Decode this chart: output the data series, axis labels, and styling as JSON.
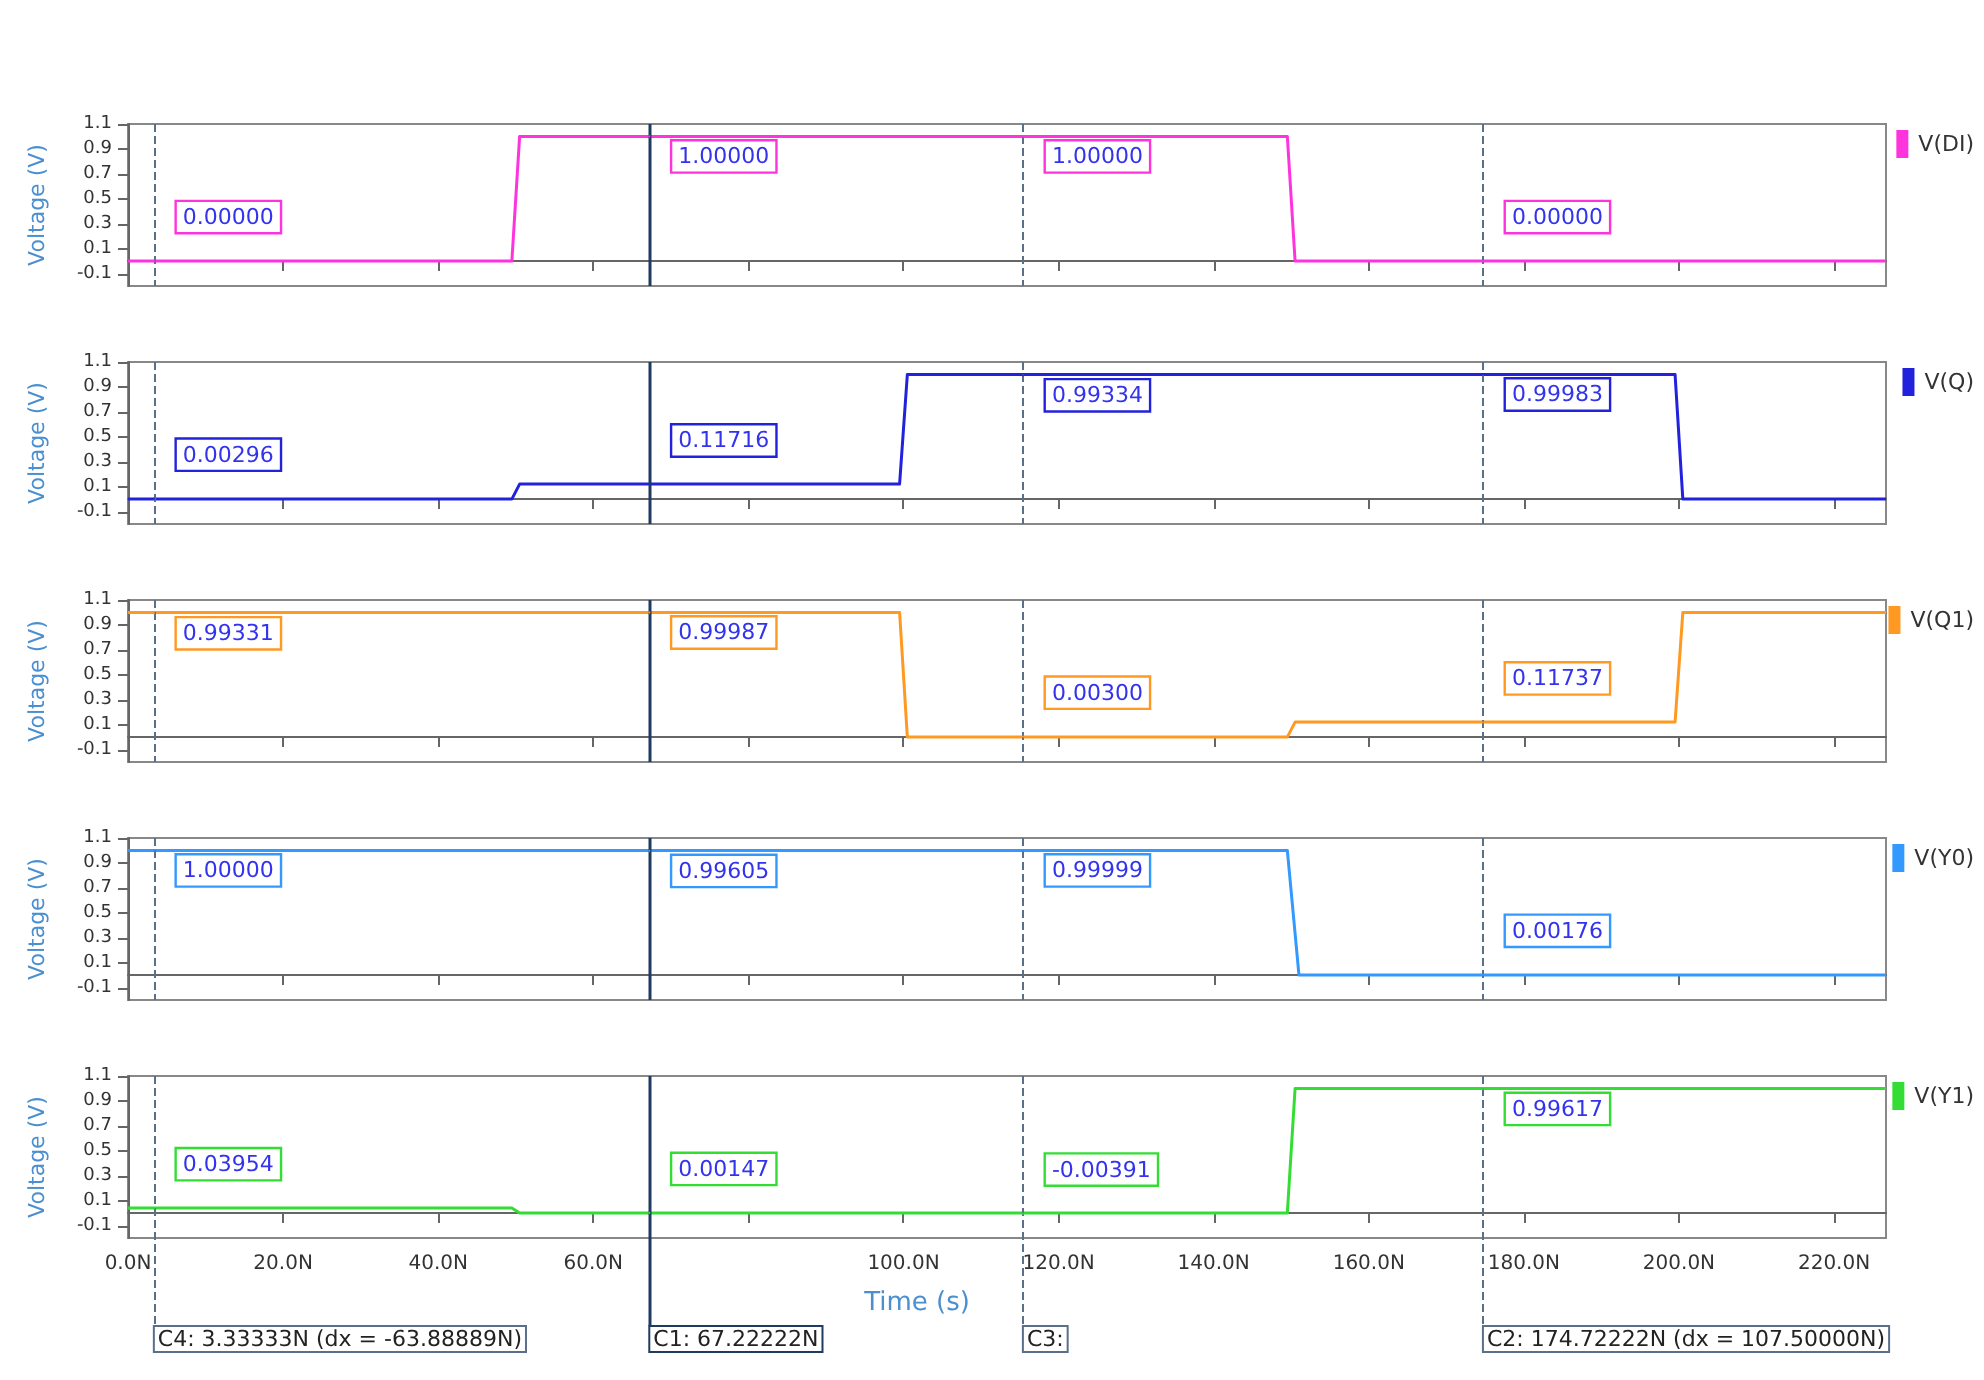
{
  "chart_data": [
    {
      "type": "line",
      "ylabel": "Voltage (V)",
      "legend": "right",
      "marker": "none",
      "tick_labels": "y",
      "xlim": [
        0,
        226.7
      ],
      "xticks": [
        0,
        20,
        40,
        60,
        80,
        100,
        120,
        140,
        160,
        180,
        200,
        220
      ],
      "ylim": [
        -0.2,
        1.1
      ],
      "yticks": [
        -0.1,
        0.1,
        0.3,
        0.5,
        0.7,
        0.9,
        1.1
      ],
      "series": [
        {
          "name": "V(DI)",
          "color": "#ff33dd",
          "x": [
            0,
            49.5,
            50.5,
            149.5,
            150.5,
            226.7
          ],
          "values": [
            0,
            0,
            1,
            1,
            0,
            0
          ]
        }
      ],
      "ref_lines": [
        {
          "axis": "x",
          "value": 3.33333,
          "color": "#5a6f8a",
          "line_style": "dashed"
        },
        {
          "axis": "x",
          "value": 67.22222,
          "color": "#1f3b5f",
          "line_style": "solid"
        },
        {
          "axis": "x",
          "value": 115.4,
          "color": "#5a6f8a",
          "line_style": "dashed"
        },
        {
          "axis": "x",
          "value": 174.72222,
          "color": "#5a6f8a",
          "line_style": "dashed"
        }
      ],
      "annotations": [
        {
          "text": "0.00000",
          "x": 3.33333,
          "y": 0
        },
        {
          "text": "1.00000",
          "x": 67.22222,
          "y": 1
        },
        {
          "text": "1.00000",
          "x": 115.4,
          "y": 1
        },
        {
          "text": "0.00000",
          "x": 174.72222,
          "y": 0
        }
      ]
    },
    {
      "type": "line",
      "ylabel": "Voltage (V)",
      "legend": "right",
      "marker": "none",
      "tick_labels": "y",
      "xlim": [
        0,
        226.7
      ],
      "xticks": [
        0,
        20,
        40,
        60,
        80,
        100,
        120,
        140,
        160,
        180,
        200,
        220
      ],
      "ylim": [
        -0.2,
        1.1
      ],
      "yticks": [
        -0.1,
        0.1,
        0.3,
        0.5,
        0.7,
        0.9,
        1.1
      ],
      "series": [
        {
          "name": "V(Q)",
          "color": "#2222dd",
          "x": [
            0,
            49.5,
            50.5,
            99.5,
            100.5,
            199.5,
            200.5,
            226.7
          ],
          "values": [
            0,
            0,
            0.12,
            0.12,
            1,
            1,
            0,
            0
          ]
        }
      ],
      "ref_lines": [
        {
          "axis": "x",
          "value": 3.33333,
          "color": "#5a6f8a",
          "line_style": "dashed"
        },
        {
          "axis": "x",
          "value": 67.22222,
          "color": "#1f3b5f",
          "line_style": "solid"
        },
        {
          "axis": "x",
          "value": 115.4,
          "color": "#5a6f8a",
          "line_style": "dashed"
        },
        {
          "axis": "x",
          "value": 174.72222,
          "color": "#5a6f8a",
          "line_style": "dashed"
        }
      ],
      "annotations": [
        {
          "text": "0.00296",
          "x": 3.33333,
          "y": 0.00296
        },
        {
          "text": "0.11716",
          "x": 67.22222,
          "y": 0.11716
        },
        {
          "text": "0.99334",
          "x": 115.4,
          "y": 0.99334
        },
        {
          "text": "0.99983",
          "x": 174.72222,
          "y": 0.99983
        }
      ]
    },
    {
      "type": "line",
      "ylabel": "Voltage (V)",
      "legend": "right",
      "marker": "none",
      "tick_labels": "y",
      "xlim": [
        0,
        226.7
      ],
      "xticks": [
        0,
        20,
        40,
        60,
        80,
        100,
        120,
        140,
        160,
        180,
        200,
        220
      ],
      "ylim": [
        -0.2,
        1.1
      ],
      "yticks": [
        -0.1,
        0.1,
        0.3,
        0.5,
        0.7,
        0.9,
        1.1
      ],
      "series": [
        {
          "name": "V(Q1)",
          "color": "#ff9922",
          "x": [
            0,
            99.5,
            100.5,
            149.5,
            150.5,
            199.5,
            200.5,
            226.7
          ],
          "values": [
            1,
            1,
            0,
            0,
            0.12,
            0.12,
            1,
            1
          ]
        }
      ],
      "ref_lines": [
        {
          "axis": "x",
          "value": 3.33333,
          "color": "#5a6f8a",
          "line_style": "dashed"
        },
        {
          "axis": "x",
          "value": 67.22222,
          "color": "#1f3b5f",
          "line_style": "solid"
        },
        {
          "axis": "x",
          "value": 115.4,
          "color": "#5a6f8a",
          "line_style": "dashed"
        },
        {
          "axis": "x",
          "value": 174.72222,
          "color": "#5a6f8a",
          "line_style": "dashed"
        }
      ],
      "annotations": [
        {
          "text": "0.99331",
          "x": 3.33333,
          "y": 0.99331
        },
        {
          "text": "0.99987",
          "x": 67.22222,
          "y": 0.99987
        },
        {
          "text": "0.00300",
          "x": 115.4,
          "y": 0.003
        },
        {
          "text": "0.11737",
          "x": 174.72222,
          "y": 0.11737
        }
      ]
    },
    {
      "type": "line",
      "ylabel": "Voltage (V)",
      "legend": "right",
      "marker": "none",
      "tick_labels": "y",
      "xlim": [
        0,
        226.7
      ],
      "xticks": [
        0,
        20,
        40,
        60,
        80,
        100,
        120,
        140,
        160,
        180,
        200,
        220
      ],
      "ylim": [
        -0.2,
        1.1
      ],
      "yticks": [
        -0.1,
        0.1,
        0.3,
        0.5,
        0.7,
        0.9,
        1.1
      ],
      "series": [
        {
          "name": "V(Y0)",
          "color": "#3399ff",
          "x": [
            0,
            149.5,
            151,
            226.7
          ],
          "values": [
            1,
            1,
            0,
            0
          ]
        }
      ],
      "ref_lines": [
        {
          "axis": "x",
          "value": 3.33333,
          "color": "#5a6f8a",
          "line_style": "dashed"
        },
        {
          "axis": "x",
          "value": 67.22222,
          "color": "#1f3b5f",
          "line_style": "solid"
        },
        {
          "axis": "x",
          "value": 115.4,
          "color": "#5a6f8a",
          "line_style": "dashed"
        },
        {
          "axis": "x",
          "value": 174.72222,
          "color": "#5a6f8a",
          "line_style": "dashed"
        }
      ],
      "annotations": [
        {
          "text": "1.00000",
          "x": 3.33333,
          "y": 1
        },
        {
          "text": "0.99605",
          "x": 67.22222,
          "y": 0.99605
        },
        {
          "text": "0.99999",
          "x": 115.4,
          "y": 0.99999
        },
        {
          "text": "0.00176",
          "x": 174.72222,
          "y": 0.00176
        }
      ]
    },
    {
      "type": "line",
      "ylabel": "Voltage (V)",
      "xlabel": "Time (s)",
      "legend": "right",
      "marker": "none",
      "xlim": [
        0,
        226.7
      ],
      "xticks": [
        {
          "value": 0,
          "label": "0.0N"
        },
        {
          "value": 20,
          "label": "20.0N"
        },
        {
          "value": 40,
          "label": "40.0N"
        },
        {
          "value": 60,
          "label": "60.0N"
        },
        {
          "value": 80,
          "label": null
        },
        {
          "value": 100,
          "label": "100.0N"
        },
        {
          "value": 120,
          "label": "120.0N"
        },
        {
          "value": 140,
          "label": "140.0N"
        },
        {
          "value": 160,
          "label": "160.0N"
        },
        {
          "value": 180,
          "label": "180.0N"
        },
        {
          "value": 200,
          "label": "200.0N"
        },
        {
          "value": 220,
          "label": "220.0N"
        }
      ],
      "ylim": [
        -0.2,
        1.1
      ],
      "yticks": [
        -0.1,
        0.1,
        0.3,
        0.5,
        0.7,
        0.9,
        1.1
      ],
      "series": [
        {
          "name": "V(Y1)",
          "color": "#33dd33",
          "x": [
            0,
            49.5,
            50.5,
            149.5,
            150.5,
            226.7
          ],
          "values": [
            0.04,
            0.04,
            0,
            0,
            1,
            1
          ]
        }
      ],
      "ref_lines": [
        {
          "axis": "x",
          "value": 3.33333,
          "label": "C4: 3.33333N (dx = -63.88889N)",
          "color": "#5a6f8a",
          "line_style": "dashed"
        },
        {
          "axis": "x",
          "value": 67.22222,
          "label": "C1: 67.22222N",
          "color": "#1f3b5f",
          "line_style": "solid"
        },
        {
          "axis": "x",
          "value": 115.4,
          "label": "C3:",
          "color": "#5a6f8a",
          "line_style": "dashed"
        },
        {
          "axis": "x",
          "value": 174.72222,
          "label": "C2: 174.72222N (dx = 107.50000N)",
          "color": "#5a6f8a",
          "line_style": "dashed"
        }
      ],
      "annotations": [
        {
          "text": "0.03954",
          "x": 3.33333,
          "y": 0.03954
        },
        {
          "text": "0.00147",
          "x": 67.22222,
          "y": 0.00147
        },
        {
          "text": "-0.00391",
          "x": 115.4,
          "y": -0.00391
        },
        {
          "text": "0.99617",
          "x": 174.72222,
          "y": 0.99617
        }
      ]
    }
  ]
}
